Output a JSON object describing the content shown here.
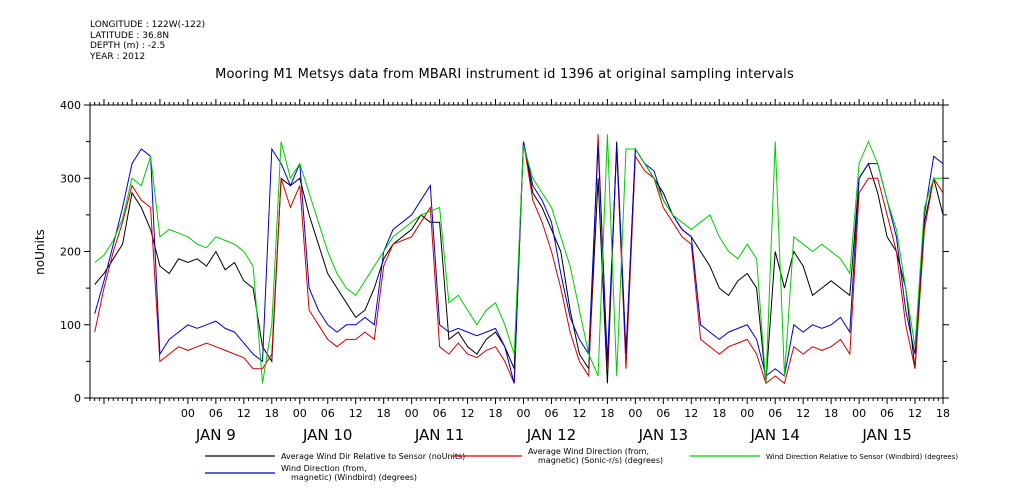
{
  "header": {
    "meta_lines": [
      "LONGITUDE : 122W(-122)",
      "LATITUDE : 36.8N",
      "DEPTH (m) : -2.5",
      "YEAR : 2012"
    ],
    "title": "Mooring M1 Metsys data from MBARI instrument id 1396 at original sampling intervals"
  },
  "chart_data": {
    "type": "line",
    "ylabel": "noUnits",
    "ylim": [
      0,
      400
    ],
    "yticks": [
      0,
      100,
      200,
      300,
      400
    ],
    "xlim_hours": [
      -21,
      162
    ],
    "xtick_labels": [
      "00",
      "06",
      "12",
      "18",
      "00",
      "06",
      "12",
      "18",
      "00",
      "06",
      "12",
      "18",
      "00",
      "06",
      "12",
      "18",
      "00",
      "06",
      "12",
      "18",
      "00",
      "06",
      "12",
      "18",
      "00",
      "06",
      "12",
      "18"
    ],
    "day_labels": [
      "JAN  9",
      "JAN 10",
      "JAN 11",
      "JAN 12",
      "JAN 13",
      "JAN 14",
      "JAN 15"
    ],
    "x_hours_since_jan9": [
      -20,
      -18,
      -16,
      -14,
      -12,
      -10,
      -8,
      -6,
      -4,
      -2,
      0,
      2,
      4,
      6,
      8,
      10,
      12,
      14,
      16,
      18,
      20,
      22,
      24,
      26,
      28,
      30,
      32,
      34,
      36,
      38,
      40,
      42,
      44,
      46,
      48,
      50,
      52,
      54,
      56,
      58,
      60,
      62,
      64,
      66,
      68,
      70,
      72,
      74,
      76,
      78,
      80,
      82,
      84,
      86,
      88,
      90,
      92,
      94,
      96,
      98,
      100,
      102,
      104,
      106,
      108,
      110,
      112,
      114,
      116,
      118,
      120,
      122,
      124,
      126,
      128,
      130,
      132,
      134,
      136,
      138,
      140,
      142,
      144,
      146,
      148,
      150,
      152,
      154,
      156,
      158,
      160,
      162
    ],
    "series": [
      {
        "name": "Average Wind Dir Relative to Sensor (noUnits)",
        "color": "#000000",
        "values": [
          155,
          170,
          190,
          210,
          280,
          260,
          230,
          180,
          170,
          190,
          185,
          190,
          180,
          200,
          175,
          185,
          160,
          150,
          70,
          50,
          300,
          290,
          300,
          250,
          210,
          170,
          150,
          130,
          110,
          120,
          150,
          190,
          210,
          220,
          230,
          250,
          240,
          240,
          80,
          90,
          70,
          60,
          80,
          90,
          70,
          40,
          350,
          280,
          260,
          230,
          200,
          120,
          60,
          40,
          300,
          20,
          350,
          60,
          340,
          320,
          300,
          280,
          250,
          230,
          220,
          200,
          180,
          150,
          140,
          160,
          170,
          150,
          20,
          200,
          150,
          200,
          180,
          140,
          150,
          160,
          150,
          140,
          300,
          320,
          280,
          220,
          200,
          150,
          40,
          240,
          300,
          250
        ]
      },
      {
        "name": "Average Wind Direction (from, magnetic) (Sonic-r/s) (degrees)",
        "color": "#d00000",
        "values": [
          90,
          150,
          200,
          240,
          290,
          270,
          260,
          50,
          60,
          70,
          65,
          70,
          75,
          70,
          65,
          60,
          55,
          40,
          40,
          60,
          300,
          260,
          290,
          120,
          100,
          80,
          70,
          80,
          80,
          90,
          80,
          180,
          210,
          215,
          220,
          240,
          260,
          70,
          60,
          75,
          60,
          55,
          65,
          70,
          50,
          20,
          350,
          270,
          240,
          200,
          150,
          90,
          50,
          30,
          360,
          40,
          340,
          40,
          330,
          310,
          300,
          260,
          240,
          220,
          210,
          80,
          70,
          60,
          70,
          75,
          80,
          60,
          20,
          30,
          20,
          70,
          60,
          70,
          65,
          70,
          80,
          60,
          280,
          300,
          300,
          250,
          200,
          100,
          40,
          230,
          300,
          280
        ]
      },
      {
        "name": "Wind Direction (from, magnetic) (Windbird) (degrees)",
        "color": "#0000cc",
        "values": [
          115,
          160,
          210,
          260,
          320,
          340,
          330,
          60,
          80,
          90,
          100,
          95,
          100,
          105,
          95,
          90,
          75,
          60,
          50,
          340,
          320,
          290,
          320,
          150,
          120,
          100,
          90,
          100,
          100,
          110,
          100,
          200,
          230,
          240,
          250,
          270,
          290,
          100,
          90,
          95,
          90,
          85,
          90,
          95,
          70,
          20,
          350,
          290,
          270,
          240,
          170,
          110,
          80,
          60,
          345,
          50,
          345,
          60,
          340,
          320,
          310,
          270,
          250,
          230,
          220,
          100,
          90,
          80,
          90,
          95,
          100,
          80,
          30,
          40,
          30,
          100,
          90,
          100,
          95,
          100,
          110,
          90,
          300,
          320,
          320,
          270,
          220,
          120,
          60,
          250,
          330,
          320
        ]
      },
      {
        "name": "Wind Direction Relative to Sensor (Windbird) (degrees)",
        "color": "#00cc00",
        "values": [
          185,
          195,
          215,
          245,
          300,
          290,
          330,
          220,
          230,
          225,
          220,
          210,
          205,
          220,
          215,
          210,
          200,
          180,
          20,
          100,
          350,
          300,
          320,
          280,
          240,
          200,
          170,
          150,
          140,
          160,
          180,
          200,
          220,
          230,
          240,
          250,
          255,
          260,
          130,
          140,
          120,
          100,
          120,
          130,
          100,
          60,
          345,
          300,
          280,
          260,
          220,
          180,
          120,
          60,
          30,
          360,
          30,
          340,
          340,
          320,
          300,
          270,
          250,
          240,
          230,
          240,
          250,
          220,
          200,
          190,
          210,
          190,
          20,
          350,
          30,
          220,
          210,
          200,
          210,
          200,
          190,
          170,
          320,
          350,
          320,
          270,
          230,
          150,
          70,
          260,
          300,
          300
        ]
      }
    ],
    "legend_placement": "bottom"
  }
}
